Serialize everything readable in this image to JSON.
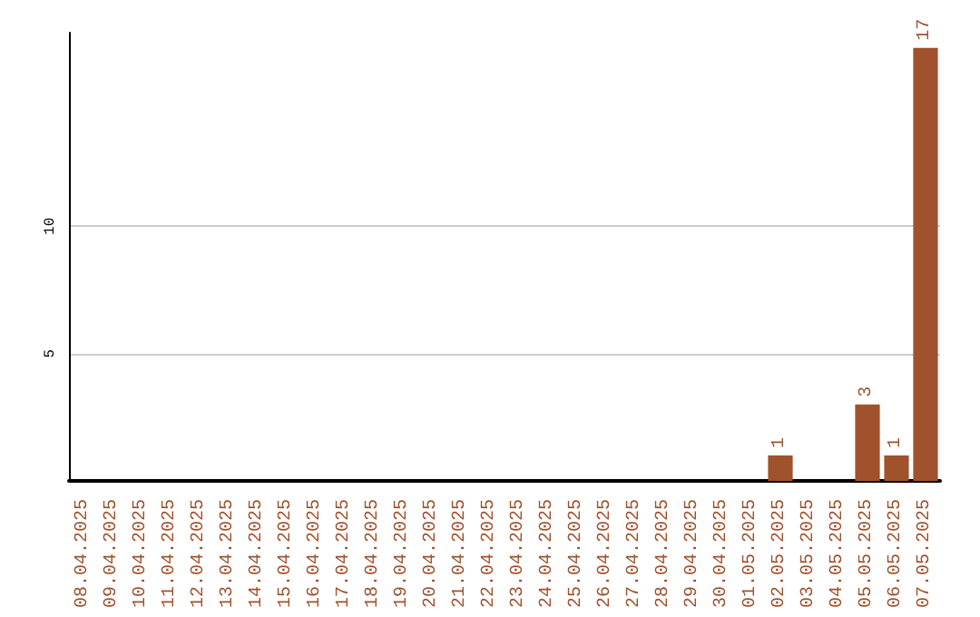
{
  "chart_data": {
    "type": "bar",
    "categories": [
      "08.04.2025",
      "09.04.2025",
      "10.04.2025",
      "11.04.2025",
      "12.04.2025",
      "13.04.2025",
      "14.04.2025",
      "15.04.2025",
      "16.04.2025",
      "17.04.2025",
      "18.04.2025",
      "19.04.2025",
      "20.04.2025",
      "21.04.2025",
      "22.04.2025",
      "23.04.2025",
      "24.04.2025",
      "25.04.2025",
      "26.04.2025",
      "27.04.2025",
      "28.04.2025",
      "29.04.2025",
      "30.04.2025",
      "01.05.2025",
      "02.05.2025",
      "03.05.2025",
      "04.05.2025",
      "05.05.2025",
      "06.05.2025",
      "07.05.2025"
    ],
    "values": [
      0,
      0,
      0,
      0,
      0,
      0,
      0,
      0,
      0,
      0,
      0,
      0,
      0,
      0,
      0,
      0,
      0,
      0,
      0,
      0,
      0,
      0,
      0,
      0,
      1,
      0,
      0,
      3,
      1,
      17
    ],
    "value_labels": [
      null,
      null,
      null,
      null,
      null,
      null,
      null,
      null,
      null,
      null,
      null,
      null,
      null,
      null,
      null,
      null,
      null,
      null,
      null,
      null,
      null,
      null,
      null,
      null,
      "1",
      null,
      null,
      "3",
      "1",
      "17"
    ],
    "color": "#a0522d",
    "ylim": [
      0,
      17.6
    ],
    "yticks": [
      5,
      10
    ],
    "grid": "y"
  }
}
